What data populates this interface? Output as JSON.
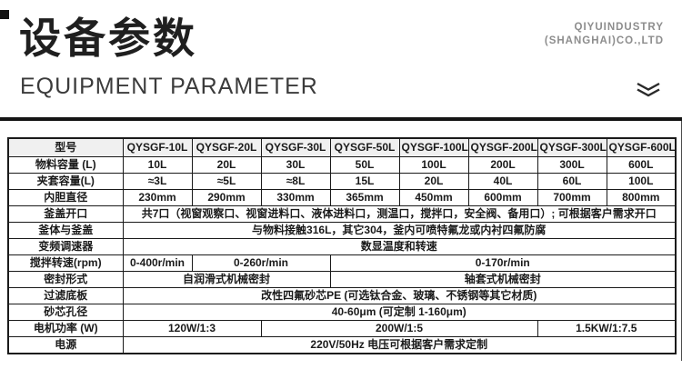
{
  "header": {
    "title": "设备参数",
    "subtitle": "EQUIPMENT PARAMETER",
    "company_line1": "QIYUINDUSTRY",
    "company_line2": "(SHANGHAI)CO.,LTD",
    "chevron_icon": "double-chevron-down"
  },
  "colors": {
    "accent_black": "#141414",
    "table_border": "#1a1a1a",
    "header_row_bg": "#f0f0f0",
    "company_gray": "#8d8d8d"
  },
  "table": {
    "header": [
      "型号",
      "QYSGF-10L",
      "QYSGF-20L",
      "QYSGF-30L",
      "QYSGF-50L",
      "QYSGF-100L",
      "QYSGF-200L",
      "QYSGF-300L",
      "QYSGF-600L"
    ],
    "rows": [
      {
        "label": "物料容量 (L)",
        "cells": [
          {
            "text": "10L",
            "span": 1
          },
          {
            "text": "20L",
            "span": 1
          },
          {
            "text": "30L",
            "span": 1
          },
          {
            "text": "50L",
            "span": 1
          },
          {
            "text": "100L",
            "span": 1
          },
          {
            "text": "200L",
            "span": 1
          },
          {
            "text": "300L",
            "span": 1
          },
          {
            "text": "600L",
            "span": 1
          }
        ]
      },
      {
        "label": "夹套容量(L)",
        "cells": [
          {
            "text": "≈3L",
            "span": 1
          },
          {
            "text": "≈5L",
            "span": 1
          },
          {
            "text": "≈8L",
            "span": 1
          },
          {
            "text": "15L",
            "span": 1
          },
          {
            "text": "20L",
            "span": 1
          },
          {
            "text": "40L",
            "span": 1
          },
          {
            "text": "60L",
            "span": 1
          },
          {
            "text": "100L",
            "span": 1
          }
        ]
      },
      {
        "label": "内胆直径",
        "cells": [
          {
            "text": "230mm",
            "span": 1
          },
          {
            "text": "290mm",
            "span": 1
          },
          {
            "text": "330mm",
            "span": 1
          },
          {
            "text": "365mm",
            "span": 1
          },
          {
            "text": "450mm",
            "span": 1
          },
          {
            "text": "600mm",
            "span": 1
          },
          {
            "text": "700mm",
            "span": 1
          },
          {
            "text": "800mm",
            "span": 1
          }
        ]
      },
      {
        "label": "釜盖开口",
        "cells": [
          {
            "text": "共7口（视窗观察口、视窗进料口、液体进料口，测温口，搅拌口，安全阀、备用口）; 可根据客户需求开口",
            "span": 8
          }
        ]
      },
      {
        "label": "釜体与釜盖",
        "cells": [
          {
            "text": "与物料接触316L，其它304，釜内可喷特氟龙或内衬四氟防腐",
            "span": 8
          }
        ]
      },
      {
        "label": "变频调速器",
        "cells": [
          {
            "text": "数显温度和转速",
            "span": 8
          }
        ]
      },
      {
        "label": "搅拌转速(rpm)",
        "cells": [
          {
            "text": "0-400r/min",
            "span": 1
          },
          {
            "text": "0-260r/min",
            "span": 2
          },
          {
            "text": "0-170r/min",
            "span": 5
          }
        ]
      },
      {
        "label": "密封形式",
        "cells": [
          {
            "text": "自润滑式机械密封",
            "span": 3
          },
          {
            "text": "轴套式机械密封",
            "span": 5
          }
        ]
      },
      {
        "label": "过滤底板",
        "cells": [
          {
            "text": "改性四氟砂芯PE (可选钛合金、玻璃、不锈钢等其它材质)",
            "span": 8
          }
        ]
      },
      {
        "label": "砂芯孔径",
        "cells": [
          {
            "text": "40-60μm (可定制 1-160μm)",
            "span": 8
          }
        ]
      },
      {
        "label": "电机功率 (W)",
        "cells": [
          {
            "text": "120W/1:3",
            "span": 2
          },
          {
            "text": "200W/1:5",
            "span": 4
          },
          {
            "text": "1.5KW/1:7.5",
            "span": 2
          }
        ]
      },
      {
        "label": "电源",
        "cells": [
          {
            "text": "220V/50Hz 电压可根据客户需求定制",
            "span": 8
          }
        ]
      }
    ]
  }
}
